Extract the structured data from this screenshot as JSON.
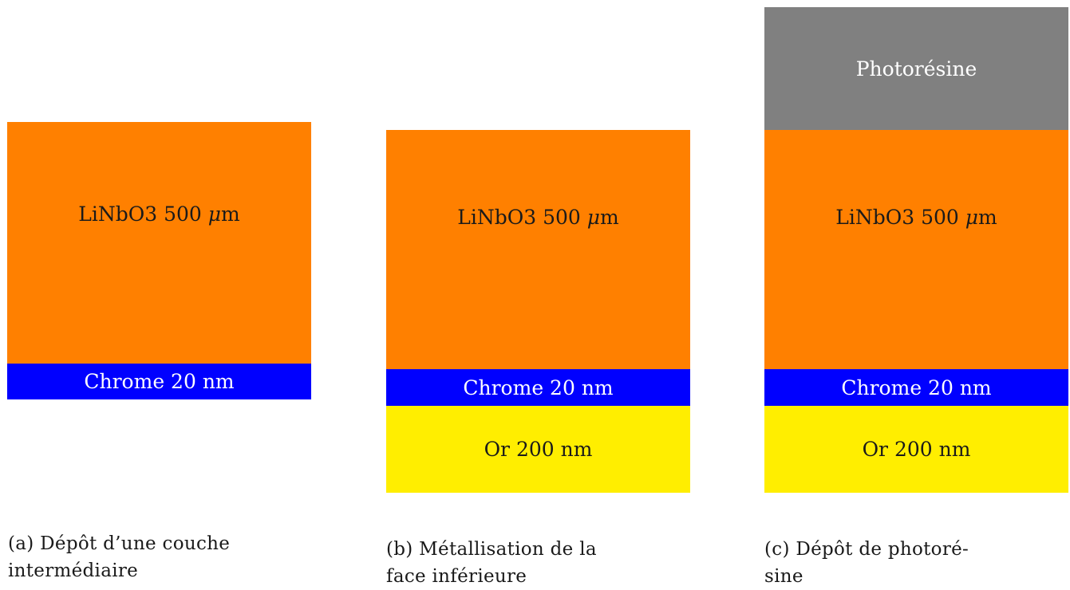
{
  "colors": {
    "lithium_niobate": "#ff8000",
    "chrome": "#0000ff",
    "gold": "#ffee00",
    "photoresist": "#808080"
  },
  "panels": [
    {
      "id": "a",
      "layers": {
        "lithium_niobate": {
          "text": "LiNbO3 500 ",
          "unit_symbol": "μ",
          "unit": "m"
        },
        "chrome": {
          "text": "Chrome 20 nm"
        }
      },
      "caption": {
        "line1": "(a) Dépôt d’une couche",
        "line2": "intermédiaire"
      }
    },
    {
      "id": "b",
      "layers": {
        "lithium_niobate": {
          "text": "LiNbO3 500 ",
          "unit_symbol": "μ",
          "unit": "m"
        },
        "chrome": {
          "text": "Chrome 20 nm"
        },
        "gold": {
          "text": "Or 200 nm"
        }
      },
      "caption": {
        "line1": "(b) Métallisation de la",
        "line2": "face inférieure"
      }
    },
    {
      "id": "c",
      "layers": {
        "photoresist": {
          "text": "Photorésine"
        },
        "lithium_niobate": {
          "text": "LiNbO3 500 ",
          "unit_symbol": "μ",
          "unit": "m"
        },
        "chrome": {
          "text": "Chrome 20 nm"
        },
        "gold": {
          "text": "Or 200 nm"
        }
      },
      "caption": {
        "line1": "(c) Dépôt de photoré-",
        "line2": "sine"
      }
    }
  ]
}
